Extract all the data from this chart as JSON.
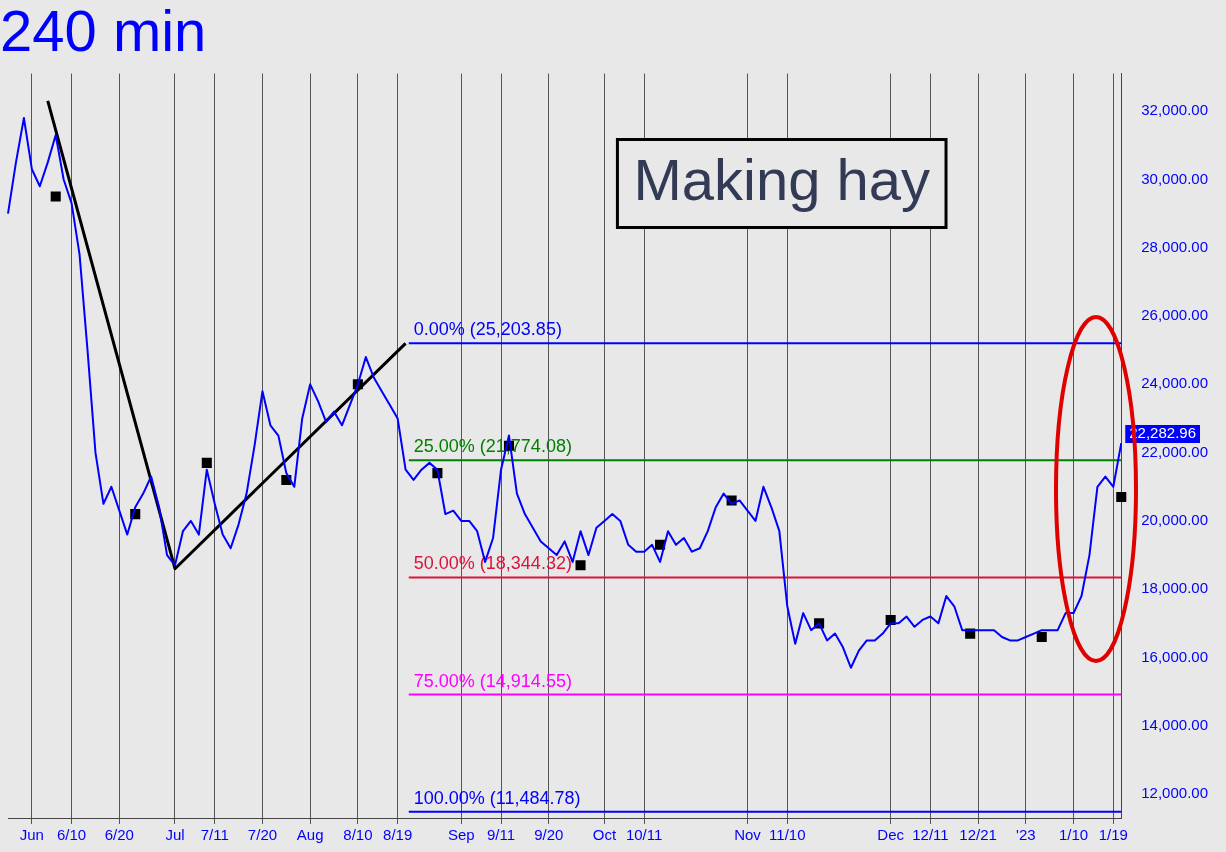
{
  "chart_data": {
    "type": "line",
    "title": "240 min",
    "categories": [
      null,
      null,
      null,
      "Jun",
      null,
      null,
      null,
      null,
      "6/10",
      null,
      null,
      null,
      null,
      null,
      "6/20",
      null,
      null,
      null,
      null,
      null,
      null,
      "Jul",
      null,
      null,
      null,
      null,
      "7/11",
      null,
      null,
      null,
      null,
      null,
      "7/20",
      null,
      null,
      null,
      null,
      null,
      "Aug",
      null,
      null,
      null,
      null,
      null,
      "8/10",
      null,
      null,
      null,
      null,
      "8/19",
      null,
      null,
      null,
      null,
      null,
      null,
      null,
      "Sep",
      null,
      null,
      null,
      null,
      "9/11",
      null,
      null,
      null,
      null,
      null,
      "9/20",
      null,
      null,
      null,
      null,
      null,
      null,
      "Oct",
      null,
      null,
      null,
      null,
      "10/11",
      null,
      null,
      null,
      null,
      null,
      null,
      null,
      null,
      null,
      null,
      null,
      null,
      "Nov",
      null,
      null,
      null,
      null,
      "11/10",
      null,
      null,
      null,
      null,
      null,
      null,
      null,
      null,
      null,
      null,
      null,
      null,
      "Dec",
      null,
      null,
      null,
      null,
      "12/11",
      null,
      null,
      null,
      null,
      null,
      "12/21",
      null,
      null,
      null,
      null,
      null,
      "'23",
      null,
      null,
      null,
      null,
      null,
      "1/10",
      null,
      null,
      null,
      null,
      "1/19",
      null
    ],
    "series": [
      {
        "color": "#0000ff",
        "marker": "none",
        "values": [
          29000,
          30500,
          31800,
          30300,
          29800,
          30500,
          31300,
          30000,
          29300,
          27800,
          25000,
          22000,
          20500,
          21000,
          20300,
          19600,
          20400,
          20800,
          21300,
          20400,
          19000,
          18700,
          19700,
          20000,
          19600,
          21500,
          20500,
          19600,
          19200,
          19900,
          20800,
          22200,
          23800,
          22800,
          22500,
          21400,
          21000,
          23000,
          24000,
          23500,
          22900,
          23200,
          22800,
          23400,
          24000,
          24800,
          24200,
          23800,
          23400,
          23000,
          21500,
          21200,
          21500,
          21700,
          21500,
          20200,
          20300,
          20000,
          20000,
          19700,
          18800,
          19500,
          21500,
          22500,
          20800,
          20200,
          19800,
          19400,
          19200,
          19000,
          19400,
          18800,
          19700,
          19000,
          19800,
          20000,
          20200,
          20000,
          19300,
          19100,
          19100,
          19300,
          18800,
          19700,
          19300,
          19500,
          19100,
          19200,
          19700,
          20400,
          20800,
          20500,
          20600,
          20300,
          20000,
          21000,
          20400,
          19700,
          17500,
          16400,
          17300,
          16800,
          17000,
          16500,
          16700,
          16300,
          15700,
          16200,
          16500,
          16500,
          16700,
          17000,
          17000,
          17200,
          16900,
          17100,
          17200,
          17000,
          17800,
          17500,
          16800,
          16800,
          16800,
          16800,
          16800,
          16600,
          16500,
          16500,
          16600,
          16700,
          16800,
          16800,
          16800,
          17300,
          17300,
          17800,
          19000,
          21000,
          21300,
          21000,
          22280
        ]
      },
      {
        "type": "scatter",
        "color": "#000000",
        "marker": "square",
        "values": [
          null,
          null,
          null,
          null,
          null,
          null,
          29500,
          null,
          null,
          null,
          null,
          null,
          null,
          null,
          null,
          null,
          20200,
          null,
          null,
          null,
          null,
          null,
          null,
          null,
          null,
          21700,
          null,
          null,
          null,
          null,
          null,
          null,
          null,
          null,
          null,
          21200,
          null,
          null,
          null,
          null,
          null,
          null,
          null,
          null,
          24000,
          null,
          null,
          null,
          null,
          null,
          null,
          null,
          null,
          null,
          21400,
          null,
          null,
          null,
          null,
          null,
          null,
          null,
          null,
          22200,
          null,
          null,
          null,
          null,
          null,
          null,
          null,
          null,
          18700,
          null,
          null,
          null,
          null,
          null,
          null,
          null,
          null,
          null,
          19300,
          null,
          null,
          null,
          null,
          null,
          null,
          null,
          null,
          20600,
          null,
          null,
          null,
          null,
          null,
          null,
          null,
          null,
          null,
          null,
          17000,
          null,
          null,
          null,
          null,
          null,
          null,
          null,
          null,
          17100,
          null,
          null,
          null,
          null,
          null,
          null,
          null,
          null,
          null,
          16700,
          null,
          null,
          null,
          null,
          null,
          null,
          null,
          null,
          16600,
          null,
          null,
          null,
          null,
          null,
          null,
          null,
          null,
          null,
          20700
        ]
      },
      {
        "type": "line",
        "color": "#000000",
        "marker": "none",
        "values": [
          null,
          null,
          null,
          null,
          null,
          32300,
          null,
          null,
          null,
          null,
          null,
          null,
          null,
          null,
          null,
          null,
          null,
          null,
          null,
          null,
          null,
          18600,
          null,
          null,
          null,
          null,
          null,
          null,
          null,
          null,
          null,
          null,
          null,
          null,
          null,
          null,
          null,
          null,
          null,
          null,
          null,
          null,
          null,
          null,
          null,
          null,
          null,
          null,
          null,
          null,
          25200,
          null,
          null,
          null,
          null,
          null,
          null,
          null,
          null,
          null,
          null,
          null,
          null,
          null,
          null,
          null,
          null,
          null,
          null,
          null,
          null,
          null,
          null,
          null,
          null,
          null,
          null,
          null,
          null,
          null,
          null,
          null,
          null,
          null,
          null,
          null,
          null,
          null,
          null,
          null,
          null,
          null,
          null,
          null,
          null,
          null,
          null,
          null,
          null,
          null,
          null,
          null,
          null,
          null,
          null,
          null,
          null,
          null,
          null,
          null,
          null,
          null,
          null,
          null,
          null,
          null,
          null,
          null,
          null,
          null,
          null,
          null,
          null,
          null,
          null,
          null,
          null,
          null,
          null,
          null,
          null,
          null,
          null,
          null,
          null,
          null,
          null,
          null,
          null,
          null,
          null
        ]
      }
    ],
    "ylim": [
      11300,
      33100
    ],
    "yticks": [
      {
        "value": 12000,
        "label": "12,000.00"
      },
      {
        "value": 14000,
        "label": "14,000.00"
      },
      {
        "value": 16000,
        "label": "16,000.00"
      },
      {
        "value": 18000,
        "label": "18,000.00"
      },
      {
        "value": 20000,
        "label": "20,000.00"
      },
      {
        "value": 22000,
        "label": "22,000.00"
      },
      {
        "value": 24000,
        "label": "24,000.00"
      },
      {
        "value": 26000,
        "label": "26,000.00"
      },
      {
        "value": 28000,
        "label": "28,000.00"
      },
      {
        "value": 30000,
        "label": "30,000.00"
      },
      {
        "value": 32000,
        "label": "32,000.00"
      }
    ],
    "grid": "x",
    "ref_lines": [
      {
        "axis": "y",
        "value": 25203.85,
        "label": "0.00% (25,203.85)",
        "color": "#0000ff"
      },
      {
        "axis": "y",
        "value": 21774.08,
        "label": "25.00% (21,774.08)",
        "color": "#008000"
      },
      {
        "axis": "y",
        "value": 18344.32,
        "label": "50.00% (18,344.32)",
        "color": "#dc143c"
      },
      {
        "axis": "y",
        "value": 14914.55,
        "label": "75.00% (14,914.55)",
        "color": "#ff00ff"
      },
      {
        "axis": "y",
        "value": 11484.78,
        "label": "100.00% (11,484.78)",
        "color": "#0000ff"
      }
    ],
    "annotations": [
      "Making hay",
      "22,282.96"
    ]
  }
}
